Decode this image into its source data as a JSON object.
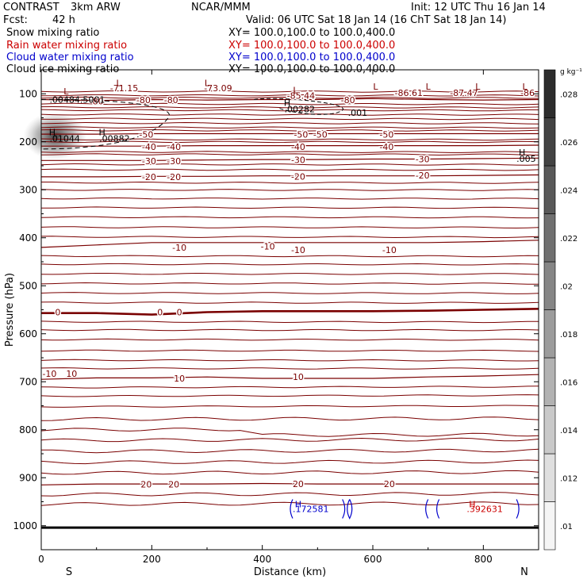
{
  "header": {
    "project": "CONTRAST",
    "model": "3km ARW",
    "org": "NCAR/MMM",
    "init": "Init: 12 UTC Thu 16 Jan 14",
    "fcst_label": "Fcst:",
    "fcst_value": "42 h",
    "valid": "Valid: 06 UTC Sat 18 Jan 14 (16 ChT Sat 18 Jan 14)"
  },
  "fields": [
    {
      "name": "Snow mixing ratio",
      "xy": "XY= 100.0,100.0 to 100.0,400.0",
      "color": "#000000"
    },
    {
      "name": "Rain water mixing ratio",
      "xy": "XY= 100.0,100.0 to 100.0,400.0",
      "color": "#cc0000"
    },
    {
      "name": "Cloud water mixing ratio",
      "xy": "XY= 100.0,100.0 to 100.0,400.0",
      "color": "#0000cc"
    },
    {
      "name": "Cloud ice mixing ratio",
      "xy": "XY= 100.0,100.0 to 100.0,400.0",
      "color": "#000000"
    }
  ],
  "chart_data": {
    "type": "cross-section contour",
    "xlabel": "Distance (km)",
    "ylabel": "Pressure (hPa)",
    "xlim": [
      0,
      900
    ],
    "ylim": [
      1050,
      50
    ],
    "x_ticks": [
      0,
      200,
      400,
      600,
      800
    ],
    "y_ticks": [
      100,
      200,
      300,
      400,
      500,
      600,
      700,
      800,
      900,
      1000
    ],
    "end_labels": {
      "left": "S",
      "right": "N"
    },
    "colorbar": {
      "unit": "g kg⁻¹",
      "levels": [
        0.01,
        0.012,
        0.014,
        0.016,
        0.018,
        0.02,
        0.022,
        0.024,
        0.026,
        0.028
      ],
      "tick_labels": [
        ".01",
        ".012",
        ".014",
        ".016",
        ".018",
        ".02",
        ".022",
        ".024",
        ".026",
        ".028"
      ]
    },
    "temperature_contours": [
      {
        "label": "-80",
        "p": [
          112,
          114,
          112,
          113,
          112,
          112,
          110,
          112,
          113,
          112
        ]
      },
      {
        "label": "-50",
        "p": [
          184,
          184,
          183,
          183,
          183,
          183,
          183,
          183,
          183,
          183
        ]
      },
      {
        "label": "-40",
        "p": [
          209,
          209,
          209,
          208,
          208,
          208,
          208,
          208,
          208,
          207
        ]
      },
      {
        "label": "-30",
        "p": [
          239,
          239,
          239,
          238,
          237,
          237,
          236,
          236,
          235,
          234
        ]
      },
      {
        "label": "-20",
        "p": [
          273,
          273,
          272,
          272,
          271,
          271,
          271,
          271,
          270,
          269
        ]
      },
      {
        "label": "-10",
        "p": [
          420,
          415,
          410,
          410,
          410,
          410,
          410,
          410,
          408,
          405
        ]
      },
      {
        "label": "0",
        "p": [
          557,
          557,
          560,
          555,
          553,
          553,
          553,
          552,
          550,
          548
        ]
      },
      {
        "label": "10",
        "p": [
          695,
          692,
          692,
          690,
          693,
          693,
          693,
          690,
          688,
          685
        ]
      },
      {
        "label": "20",
        "p": [
          915,
          913,
          913,
          913,
          912,
          913,
          913,
          913,
          913,
          913
        ]
      }
    ],
    "contour_labels": [
      {
        "text": "-71.15",
        "x": 150,
        "p": 88
      },
      {
        "text": "-73.09",
        "x": 320,
        "p": 88
      },
      {
        "text": "-80",
        "x": 100,
        "p": 115
      },
      {
        "text": "-80",
        "x": 185,
        "p": 113
      },
      {
        "text": "-80",
        "x": 235,
        "p": 113
      },
      {
        "text": "-85.44",
        "x": 470,
        "p": 104
      },
      {
        "text": "-80",
        "x": 555,
        "p": 113
      },
      {
        "text": "-86.61",
        "x": 665,
        "p": 98
      },
      {
        "text": "-87.47",
        "x": 765,
        "p": 98
      },
      {
        "text": "-86",
        "x": 880,
        "p": 98
      },
      {
        "text": "-50",
        "x": 190,
        "p": 185
      },
      {
        "text": "-50",
        "x": 470,
        "p": 185
      },
      {
        "text": "-50",
        "x": 505,
        "p": 185
      },
      {
        "text": "-50",
        "x": 625,
        "p": 185
      },
      {
        "text": "-40",
        "x": 195,
        "p": 210
      },
      {
        "text": "-40",
        "x": 240,
        "p": 210
      },
      {
        "text": "-40",
        "x": 465,
        "p": 210
      },
      {
        "text": "-40",
        "x": 625,
        "p": 210
      },
      {
        "text": "-30",
        "x": 195,
        "p": 240
      },
      {
        "text": "-30",
        "x": 240,
        "p": 240
      },
      {
        "text": "-30",
        "x": 465,
        "p": 238
      },
      {
        "text": "-30",
        "x": 690,
        "p": 236
      },
      {
        "text": "-20",
        "x": 195,
        "p": 273
      },
      {
        "text": "-20",
        "x": 240,
        "p": 273
      },
      {
        "text": "-20",
        "x": 465,
        "p": 272
      },
      {
        "text": "-20",
        "x": 690,
        "p": 270
      },
      {
        "text": "-10",
        "x": 250,
        "p": 420
      },
      {
        "text": "-10",
        "x": 410,
        "p": 418
      },
      {
        "text": "-10",
        "x": 465,
        "p": 425
      },
      {
        "text": "-10",
        "x": 630,
        "p": 425
      },
      {
        "text": "0",
        "x": 30,
        "p": 555
      },
      {
        "text": "0",
        "x": 215,
        "p": 555
      },
      {
        "text": "0",
        "x": 250,
        "p": 555
      },
      {
        "text": "-10",
        "x": 15,
        "p": 683
      },
      {
        "text": "10",
        "x": 55,
        "p": 683
      },
      {
        "text": "10",
        "x": 250,
        "p": 693
      },
      {
        "text": "10",
        "x": 465,
        "p": 690
      },
      {
        "text": "20",
        "x": 190,
        "p": 914
      },
      {
        "text": "20",
        "x": 240,
        "p": 914
      },
      {
        "text": "20",
        "x": 465,
        "p": 913
      },
      {
        "text": "20",
        "x": 630,
        "p": 913
      }
    ],
    "extrema": [
      {
        "type": "L",
        "x": 140,
        "p": 77,
        "color": "#7a0000"
      },
      {
        "type": "L",
        "x": 300,
        "p": 77,
        "color": "#7a0000"
      },
      {
        "type": "L",
        "x": 45,
        "p": 95,
        "color": "#7a0000"
      },
      {
        "type": "L",
        "x": 460,
        "p": 92,
        "color": "#7a0000"
      },
      {
        "type": "L",
        "x": 605,
        "p": 85,
        "color": "#7a0000"
      },
      {
        "type": "L",
        "x": 700,
        "p": 85,
        "color": "#7a0000"
      },
      {
        "type": "L",
        "x": 790,
        "p": 85,
        "color": "#7a0000"
      },
      {
        "type": "L",
        "x": 875,
        "p": 85,
        "color": "#7a0000"
      },
      {
        "type": "H",
        "x": 20,
        "p": 180,
        "color": "#000000"
      },
      {
        "type": "H",
        "x": 110,
        "p": 180,
        "color": "#000000"
      },
      {
        "type": "H",
        "x": 445,
        "p": 119,
        "color": "#000000"
      },
      {
        "type": "H",
        "x": 870,
        "p": 222,
        "color": "#000000"
      },
      {
        "type": "H",
        "x": 465,
        "p": 955,
        "color": "#0000cc"
      },
      {
        "type": "H",
        "x": 780,
        "p": 955,
        "color": "#cc0000"
      }
    ],
    "value_labels": [
      {
        "text": ".00484.5001",
        "x": 15,
        "p": 112,
        "color": "#000000"
      },
      {
        "text": ".01044",
        "x": 15,
        "p": 193,
        "color": "#000000"
      },
      {
        "text": ".00882",
        "x": 105,
        "p": 193,
        "color": "#000000"
      },
      {
        "text": ".00282",
        "x": 440,
        "p": 132,
        "color": "#000000"
      },
      {
        "text": ".001",
        "x": 555,
        "p": 139,
        "color": "#000000"
      },
      {
        "text": ".005",
        "x": 860,
        "p": 235,
        "color": "#000000"
      },
      {
        "text": ".172581",
        "x": 455,
        "p": 965,
        "color": "#0000cc"
      },
      {
        "text": ".392631",
        "x": 770,
        "p": 965,
        "color": "#cc0000"
      }
    ],
    "snow_shading": [
      {
        "x": 25,
        "p": 188,
        "max": 0.028
      }
    ]
  }
}
